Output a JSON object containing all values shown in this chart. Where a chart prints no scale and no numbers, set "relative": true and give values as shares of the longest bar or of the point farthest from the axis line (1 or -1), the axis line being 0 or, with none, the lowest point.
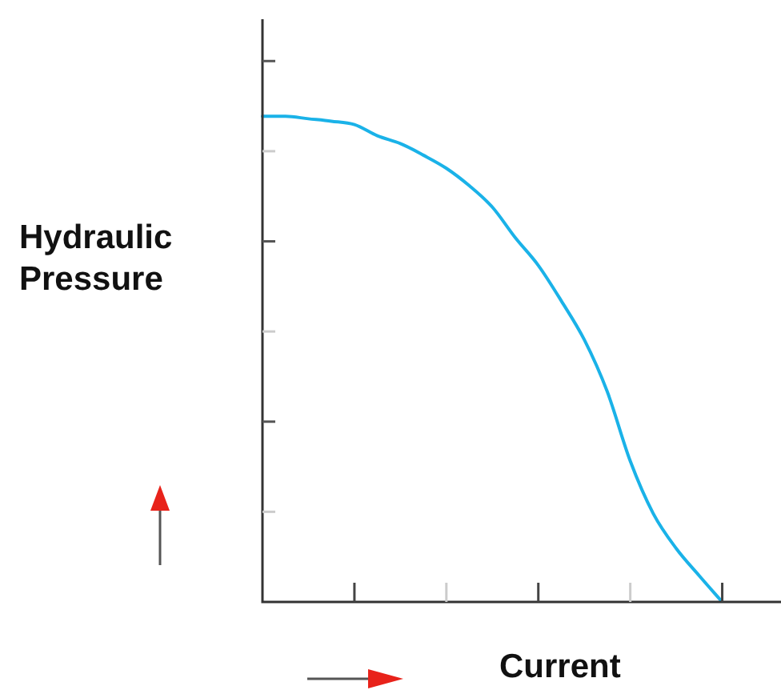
{
  "chart_data": {
    "type": "line",
    "relative": true,
    "xlabel": "Current",
    "ylabel": "Hydraulic Pressure",
    "tick_labels": false,
    "grid": false,
    "legend": false,
    "marker": "none",
    "line_style": "solid",
    "categories": [
      null,
      null,
      null,
      null,
      null,
      null,
      null,
      null,
      null,
      null,
      null,
      null,
      null,
      null,
      null,
      null,
      null,
      null,
      null,
      null,
      null,
      null,
      null
    ],
    "series": [
      {
        "color": "#1ab2e8",
        "values": [
          1.0,
          1.0,
          0.995,
          0.99,
          0.983,
          0.96,
          0.944,
          0.92,
          0.893,
          0.857,
          0.813,
          0.75,
          0.693,
          0.62,
          0.54,
          0.433,
          0.29,
          0.182,
          0.11,
          0.054,
          0,
          null,
          null
        ]
      }
    ]
  }
}
